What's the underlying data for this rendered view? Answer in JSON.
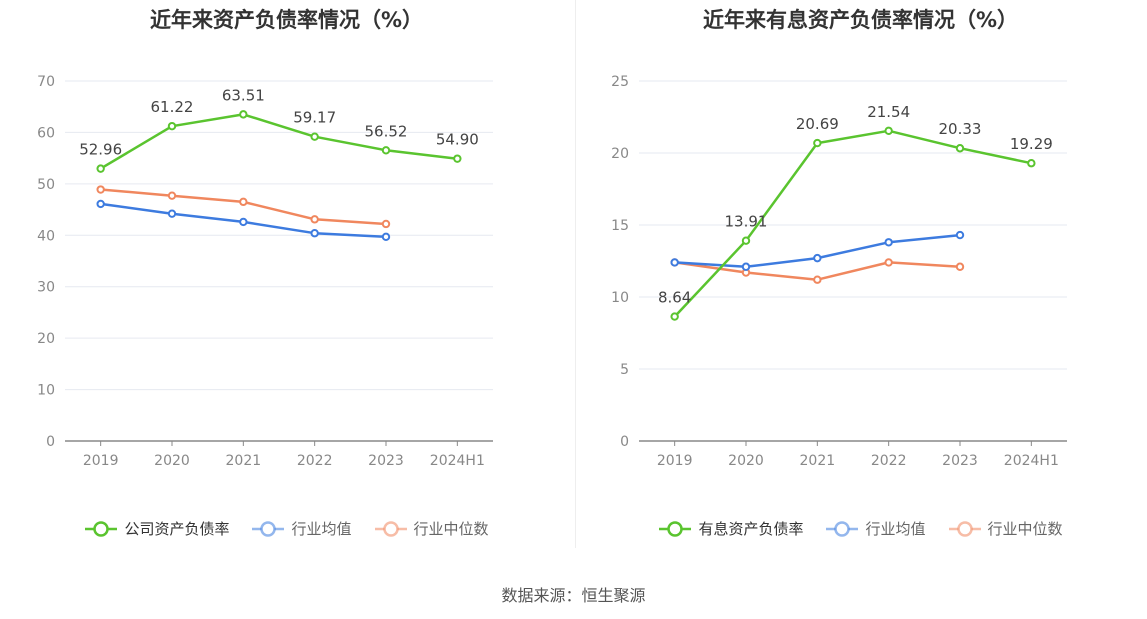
{
  "chart_data": [
    {
      "type": "line",
      "title": "近年来资产负债率情况（%）",
      "categories": [
        "2019",
        "2020",
        "2021",
        "2022",
        "2023",
        "2024H1"
      ],
      "ylim": [
        0,
        70
      ],
      "yticks": [
        "0",
        "10",
        "20",
        "30",
        "40",
        "50",
        "60",
        "70"
      ],
      "grid": true,
      "legend_position": "bottom",
      "series": [
        {
          "name": "公司资产负债率",
          "color": "#5ac42f",
          "values": [
            52.96,
            61.22,
            63.51,
            59.17,
            56.52,
            54.9
          ],
          "labels": [
            "52.96",
            "61.22",
            "63.51",
            "59.17",
            "56.52",
            "54.90"
          ]
        },
        {
          "name": "行业均值",
          "color": "#3d7bdf",
          "values": [
            46.1,
            44.2,
            42.6,
            40.4,
            39.7,
            null
          ]
        },
        {
          "name": "行业中位数",
          "color": "#f0875e",
          "values": [
            48.9,
            47.7,
            46.5,
            43.1,
            42.2,
            null
          ]
        }
      ]
    },
    {
      "type": "line",
      "title": "近年来有息资产负债率情况（%）",
      "categories": [
        "2019",
        "2020",
        "2021",
        "2022",
        "2023",
        "2024H1"
      ],
      "ylim": [
        0,
        25
      ],
      "yticks": [
        "0",
        "5",
        "10",
        "15",
        "20",
        "25"
      ],
      "grid": true,
      "legend_position": "bottom",
      "series": [
        {
          "name": "有息资产负债率",
          "color": "#5ac42f",
          "values": [
            8.64,
            13.91,
            20.69,
            21.54,
            20.33,
            19.29
          ],
          "labels": [
            "8.64",
            "13.91",
            "20.69",
            "21.54",
            "20.33",
            "19.29"
          ]
        },
        {
          "name": "行业均值",
          "color": "#3d7bdf",
          "values": [
            12.4,
            12.1,
            12.7,
            13.8,
            14.3,
            null
          ]
        },
        {
          "name": "行业中位数",
          "color": "#f0875e",
          "values": [
            12.4,
            11.7,
            11.2,
            12.4,
            12.1,
            null
          ]
        }
      ]
    }
  ],
  "source": "数据来源：恒生聚源"
}
